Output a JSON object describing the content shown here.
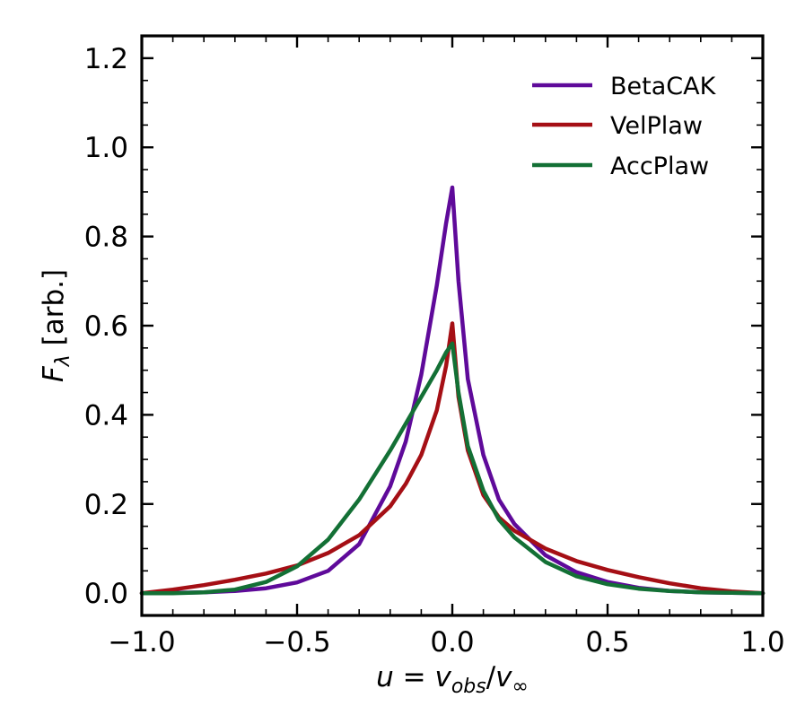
{
  "chart_data": {
    "type": "line",
    "title": "",
    "xlabel": "u = v_obs/v_∞",
    "xlabel_parts": {
      "u": "u",
      "equals": " = ",
      "v1": "v",
      "sub1": "obs",
      "slash": "/",
      "v2": "v",
      "sub2": "∞"
    },
    "ylabel": "F_λ [arb.]",
    "ylabel_parts": {
      "F": "F",
      "sub": "λ",
      "rest": " [arb.]"
    },
    "xlim": [
      -1.0,
      1.0
    ],
    "ylim": [
      -0.05,
      1.25
    ],
    "xticks": [
      -1.0,
      -0.5,
      0.0,
      0.5,
      1.0
    ],
    "xtick_labels": [
      "−1.0",
      "−0.5",
      "0.0",
      "0.5",
      "1.0"
    ],
    "yticks": [
      0.0,
      0.2,
      0.4,
      0.6,
      0.8,
      1.0,
      1.2
    ],
    "ytick_labels": [
      "0.0",
      "0.2",
      "0.4",
      "0.6",
      "0.8",
      "1.0",
      "1.2"
    ],
    "x_minor_step": 0.1,
    "y_minor_step": 0.05,
    "grid": false,
    "legend_position": "top-right",
    "series": [
      {
        "name": "BetaCAK",
        "color": "#5f0a9a",
        "x": [
          -1.0,
          -0.9,
          -0.8,
          -0.7,
          -0.6,
          -0.5,
          -0.4,
          -0.3,
          -0.2,
          -0.15,
          -0.1,
          -0.05,
          -0.02,
          0.0,
          0.02,
          0.05,
          0.1,
          0.15,
          0.2,
          0.3,
          0.4,
          0.5,
          0.6,
          0.7,
          0.8,
          0.9,
          1.0
        ],
        "y": [
          0.0,
          0.001,
          0.002,
          0.005,
          0.011,
          0.024,
          0.05,
          0.11,
          0.24,
          0.34,
          0.49,
          0.69,
          0.83,
          0.91,
          0.7,
          0.48,
          0.31,
          0.21,
          0.155,
          0.085,
          0.047,
          0.025,
          0.012,
          0.005,
          0.002,
          0.001,
          0.0
        ]
      },
      {
        "name": "VelPlaw",
        "color": "#a50f15",
        "x": [
          -1.0,
          -0.9,
          -0.8,
          -0.7,
          -0.6,
          -0.5,
          -0.4,
          -0.3,
          -0.2,
          -0.15,
          -0.1,
          -0.05,
          -0.02,
          0.0,
          0.02,
          0.05,
          0.1,
          0.15,
          0.2,
          0.3,
          0.4,
          0.5,
          0.6,
          0.7,
          0.8,
          0.9,
          1.0
        ],
        "y": [
          0.0,
          0.008,
          0.018,
          0.03,
          0.044,
          0.062,
          0.09,
          0.13,
          0.195,
          0.245,
          0.31,
          0.41,
          0.51,
          0.605,
          0.44,
          0.32,
          0.22,
          0.17,
          0.14,
          0.1,
          0.072,
          0.052,
          0.036,
          0.022,
          0.011,
          0.004,
          0.0
        ]
      },
      {
        "name": "AccPlaw",
        "color": "#137035",
        "x": [
          -1.0,
          -0.9,
          -0.8,
          -0.7,
          -0.6,
          -0.5,
          -0.4,
          -0.3,
          -0.2,
          -0.15,
          -0.1,
          -0.05,
          -0.02,
          0.0,
          0.02,
          0.05,
          0.1,
          0.15,
          0.2,
          0.3,
          0.4,
          0.5,
          0.6,
          0.7,
          0.8,
          0.9,
          1.0
        ],
        "y": [
          0.0,
          0.0,
          0.002,
          0.008,
          0.025,
          0.06,
          0.12,
          0.21,
          0.32,
          0.38,
          0.44,
          0.5,
          0.54,
          0.56,
          0.45,
          0.33,
          0.23,
          0.165,
          0.125,
          0.07,
          0.038,
          0.02,
          0.01,
          0.005,
          0.002,
          0.001,
          0.0
        ]
      }
    ]
  }
}
